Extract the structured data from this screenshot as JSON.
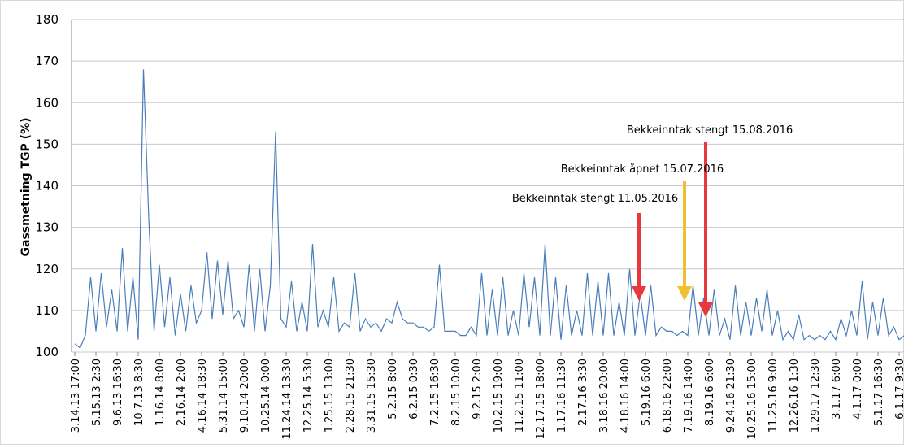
{
  "chart_data": {
    "type": "line",
    "ylabel": "Gassmetning TGP (%)",
    "ylim": [
      100,
      180
    ],
    "yticks": [
      100,
      110,
      120,
      130,
      140,
      150,
      160,
      170,
      180
    ],
    "grid": true,
    "annotations": [
      "Bekkeinntak stengt 15.08.2016",
      "Bekkeinntak åpnet 15.07.2016",
      "Bekkeinntak stengt 11.05.2016"
    ],
    "categories": [
      "3.14.13 17:00",
      null,
      null,
      null,
      "5.15.13 2:30",
      null,
      null,
      null,
      "9.6.13 16:30",
      null,
      null,
      null,
      "10.7.13 8:30",
      null,
      null,
      null,
      "1.16.14 8:00",
      null,
      null,
      null,
      "2.16.14 2:00",
      null,
      null,
      null,
      "4.16.14 18:30",
      null,
      null,
      null,
      "5.31.14 15:00",
      null,
      null,
      null,
      "9.10.14 20:00",
      null,
      null,
      null,
      "10.25.14 0:00",
      null,
      null,
      null,
      "11.24.14 13:30",
      null,
      null,
      null,
      "12.25.14 5:30",
      null,
      null,
      null,
      "1.25.15 13:00",
      null,
      null,
      null,
      "2.28.15 21:30",
      null,
      null,
      null,
      "3.31.15 15:30",
      null,
      null,
      null,
      "5.2.15 8:00",
      null,
      null,
      null,
      "6.2.15 0:30",
      null,
      null,
      null,
      "7.2.15 16:30",
      null,
      null,
      null,
      "8.2.15 10:00",
      null,
      null,
      null,
      "9.2.15 2:00",
      null,
      null,
      null,
      "10.2.15 19:00",
      null,
      null,
      null,
      "11.2.15 11:00",
      null,
      null,
      null,
      "12.17.15 18:00",
      null,
      null,
      null,
      "1.17.16 11:30",
      null,
      null,
      null,
      "2.17.16 3:30",
      null,
      null,
      null,
      "3.18.16 20:00",
      null,
      null,
      null,
      "4.18.16 14:00",
      null,
      null,
      null,
      "5.19.16 6:00",
      null,
      null,
      null,
      "6.18.16 22:00",
      null,
      null,
      null,
      "7.19.16 14:00",
      null,
      null,
      null,
      "8.19.16 6:00",
      null,
      null,
      null,
      "9.24.16 21:30",
      null,
      null,
      null,
      "10.25.16 15:00",
      null,
      null,
      null,
      "11.25.16 9:00",
      null,
      null,
      null,
      "12.26.16 1:30",
      null,
      null,
      null,
      "1.29.17 12:30",
      null,
      null,
      null,
      "3.1.17 6:00",
      null,
      null,
      null,
      "4.1.17 0:00",
      null,
      null,
      null,
      "5.1.17 16:30",
      null,
      null,
      null,
      "6.1.17 9:30",
      null,
      null
    ],
    "series": [
      {
        "color": "#4a7ebb",
        "values": [
          102,
          101,
          104,
          118,
          105,
          119,
          106,
          115,
          105,
          125,
          105,
          118,
          103,
          168,
          132,
          105,
          121,
          106,
          118,
          104,
          114,
          105,
          116,
          107,
          110,
          124,
          108,
          122,
          109,
          122,
          108,
          110,
          106,
          121,
          105,
          120,
          105,
          116,
          153,
          108,
          106,
          117,
          105,
          112,
          105,
          126,
          106,
          110,
          106,
          118,
          105,
          107,
          106,
          119,
          105,
          108,
          106,
          107,
          105,
          108,
          107,
          112,
          108,
          107,
          107,
          106,
          106,
          105,
          106,
          121,
          105,
          105,
          105,
          104,
          104,
          106,
          104,
          119,
          104,
          115,
          104,
          118,
          104,
          110,
          104,
          119,
          106,
          118,
          104,
          126,
          104,
          118,
          103,
          116,
          104,
          110,
          104,
          119,
          104,
          117,
          104,
          119,
          104,
          112,
          104,
          120,
          104,
          114,
          104,
          116,
          104,
          106,
          105,
          105,
          104,
          105,
          104,
          116,
          104,
          113,
          104,
          115,
          104,
          108,
          103,
          116,
          104,
          112,
          104,
          113,
          105,
          115,
          104,
          110,
          103,
          105,
          103,
          109,
          103,
          104,
          103,
          104,
          103,
          105,
          103,
          108,
          104,
          110,
          104,
          117,
          103,
          112,
          104,
          113,
          104,
          106,
          103,
          104,
          104
        ]
      }
    ]
  }
}
